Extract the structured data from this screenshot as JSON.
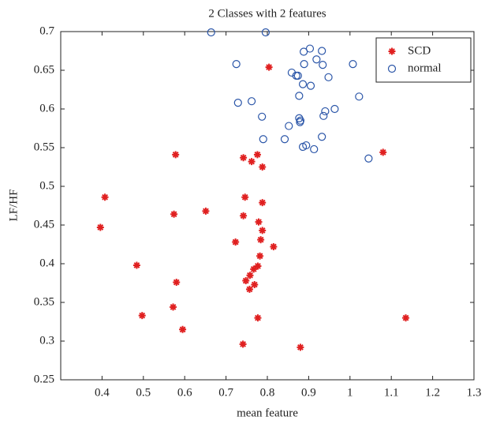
{
  "chart_data": {
    "type": "scatter",
    "title": "2 Classes with 2 features",
    "xlabel": "mean feature",
    "ylabel": "LF/HF",
    "xlim": [
      0.3,
      1.3
    ],
    "xticks": [
      0.4,
      0.5,
      0.6,
      0.7,
      0.8,
      0.9,
      1,
      1.1,
      1.2,
      1.3
    ],
    "ylim": [
      0.25,
      0.7
    ],
    "yticks": [
      0.25,
      0.3,
      0.35,
      0.4,
      0.45,
      0.5,
      0.55,
      0.6,
      0.65,
      0.7
    ],
    "legend": "upper right",
    "series": [
      {
        "name": "SCD",
        "color": "#e02020",
        "marker": "star",
        "x": [
          0.804,
          1.08,
          0.578,
          0.742,
          0.776,
          0.762,
          0.788,
          0.407,
          0.746,
          0.396,
          0.788,
          0.651,
          0.574,
          0.742,
          0.779,
          0.788,
          0.784,
          0.723,
          0.815,
          0.782,
          0.777,
          0.767,
          0.484,
          0.758,
          0.748,
          0.58,
          0.769,
          0.757,
          0.572,
          0.497,
          0.777,
          1.135,
          0.595,
          0.741,
          0.88
        ],
        "values": [
          0.654,
          0.544,
          0.541,
          0.537,
          0.541,
          0.532,
          0.525,
          0.486,
          0.486,
          0.447,
          0.479,
          0.468,
          0.464,
          0.462,
          0.454,
          0.443,
          0.431,
          0.428,
          0.422,
          0.41,
          0.397,
          0.393,
          0.398,
          0.385,
          0.378,
          0.376,
          0.373,
          0.367,
          0.344,
          0.333,
          0.33,
          0.33,
          0.315,
          0.296,
          0.292
        ]
      },
      {
        "name": "normal",
        "color": "#2a55a8",
        "marker": "circle",
        "x": [
          0.664,
          0.796,
          0.903,
          0.888,
          0.932,
          0.919,
          1.007,
          0.725,
          0.889,
          0.934,
          0.859,
          0.87,
          0.874,
          0.948,
          0.886,
          0.905,
          0.877,
          1.022,
          0.762,
          0.729,
          0.94,
          0.963,
          0.936,
          0.787,
          0.877,
          0.88,
          0.879,
          0.852,
          0.79,
          0.842,
          0.932,
          0.894,
          0.886,
          0.913,
          1.045
        ],
        "values": [
          0.699,
          0.699,
          0.678,
          0.674,
          0.675,
          0.664,
          0.658,
          0.658,
          0.658,
          0.657,
          0.647,
          0.643,
          0.643,
          0.641,
          0.632,
          0.63,
          0.617,
          0.616,
          0.61,
          0.608,
          0.597,
          0.6,
          0.591,
          0.59,
          0.588,
          0.585,
          0.583,
          0.578,
          0.561,
          0.561,
          0.564,
          0.553,
          0.551,
          0.548,
          0.536
        ]
      }
    ]
  }
}
